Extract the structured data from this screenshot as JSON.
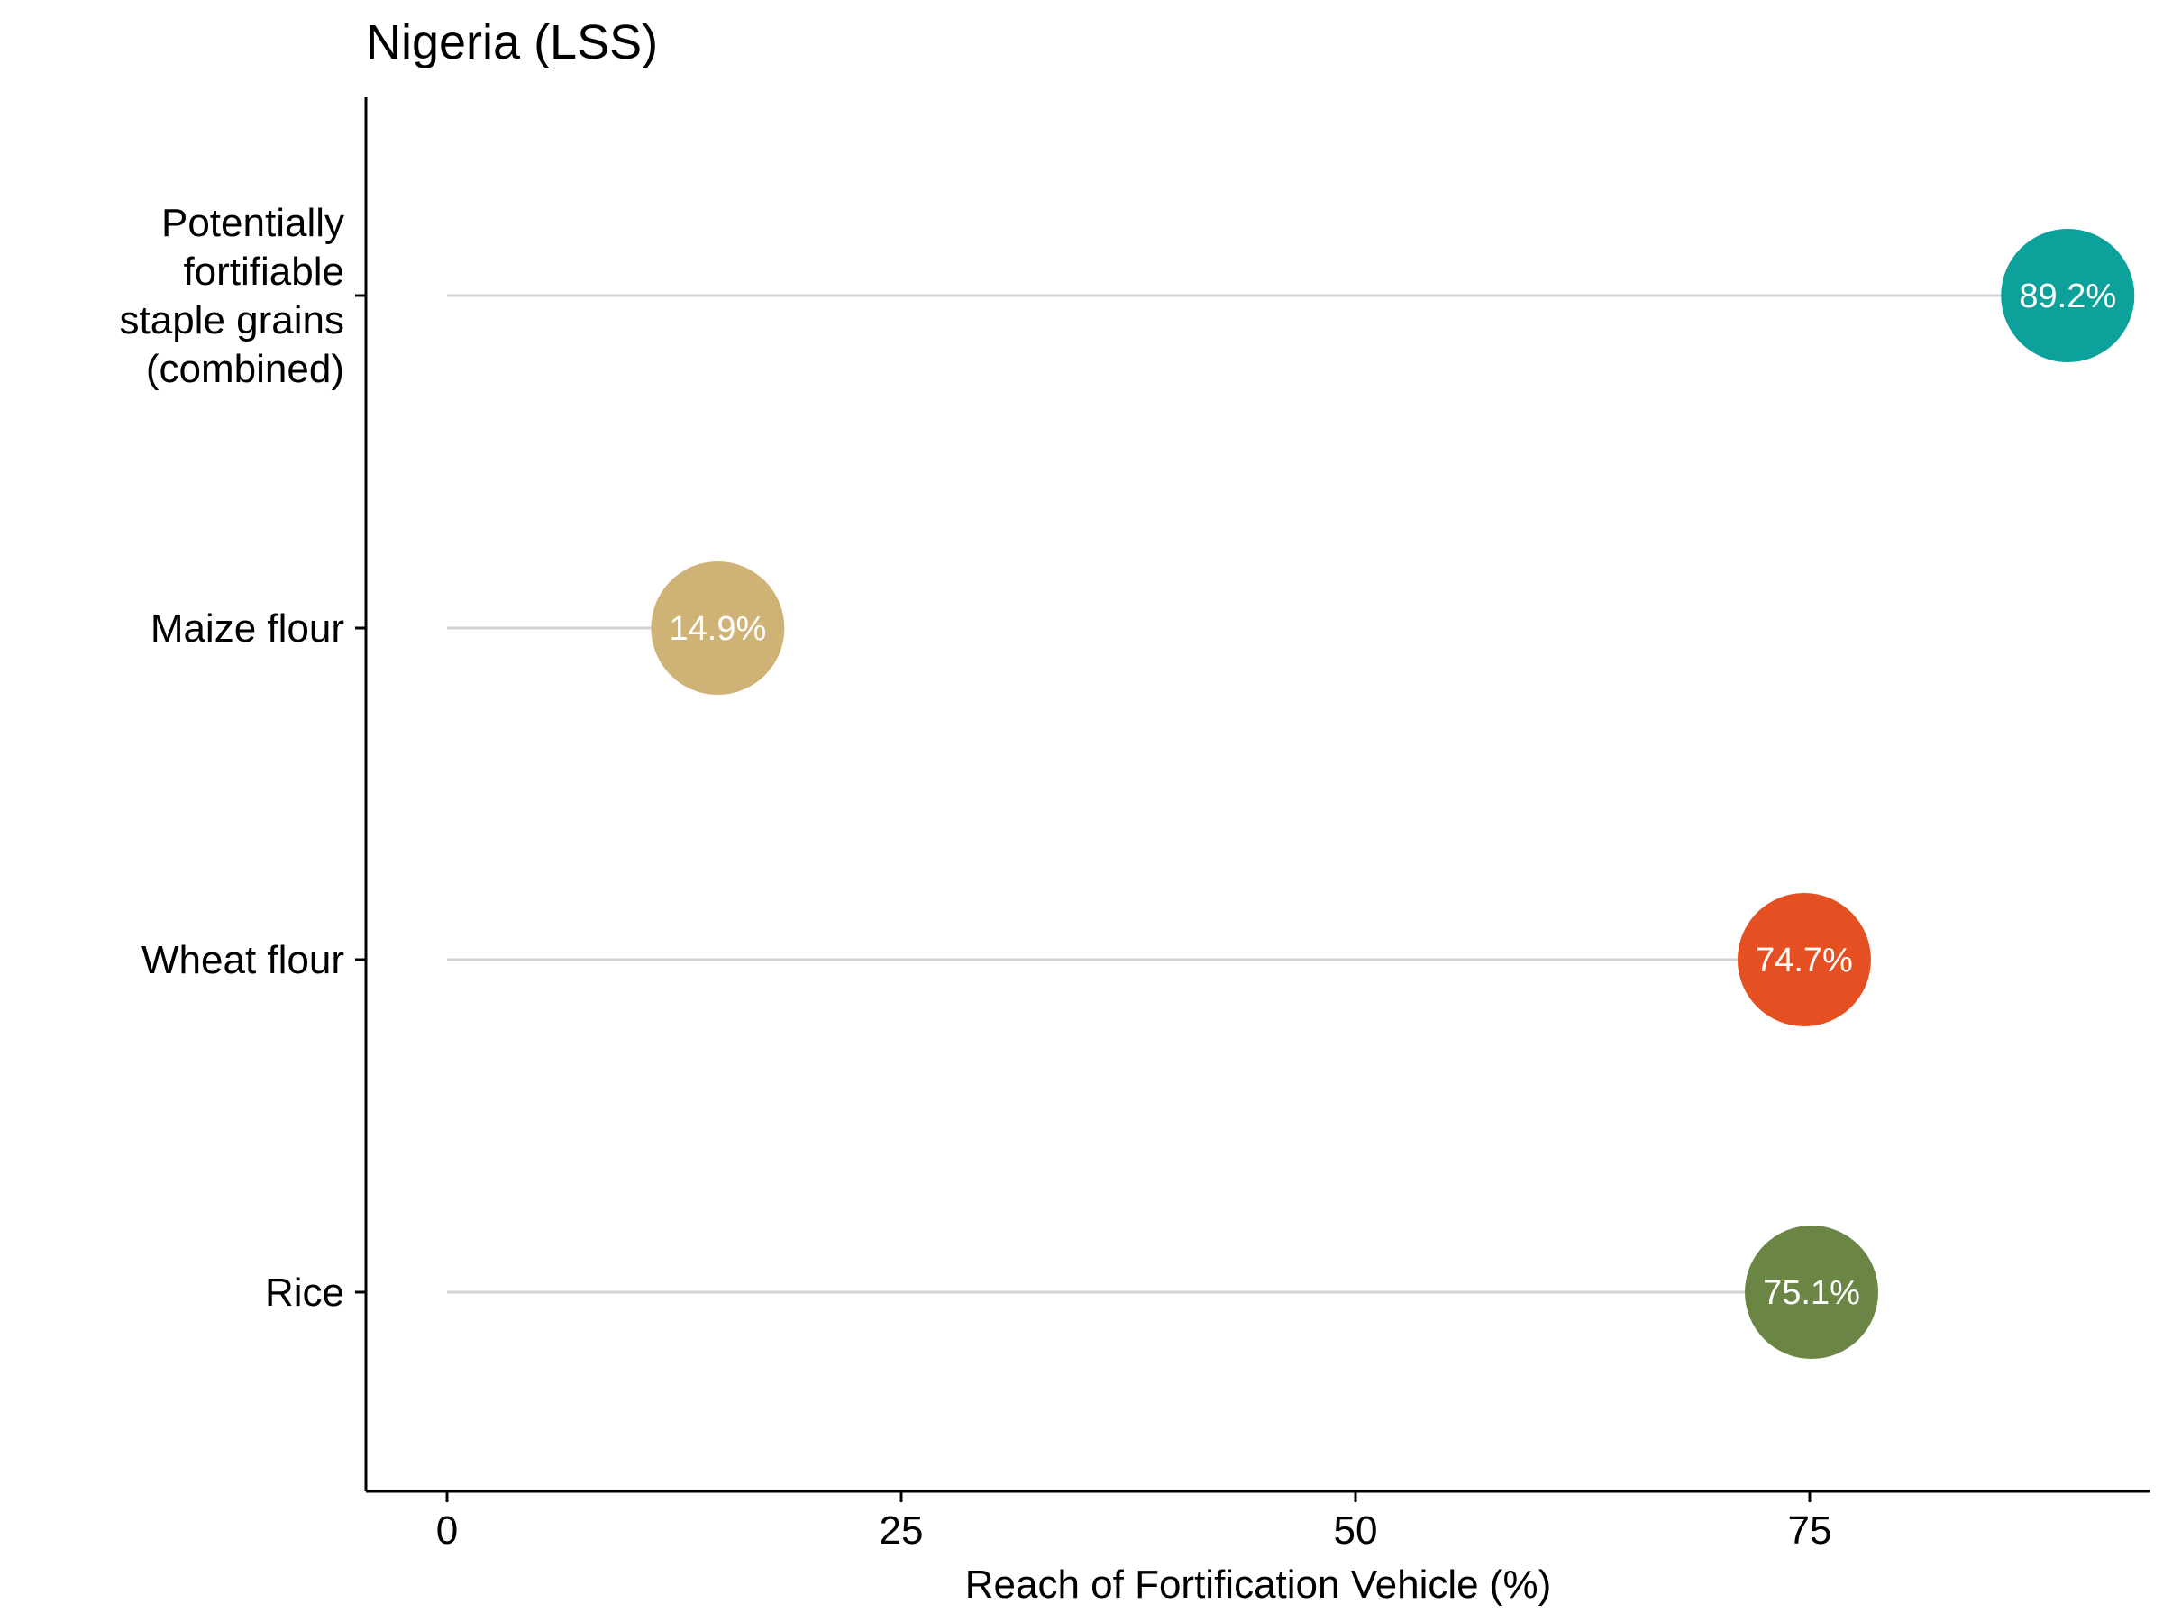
{
  "chart_data": {
    "type": "lollipop",
    "title": "Nigeria (LSS)",
    "xlabel": "Reach of Fortification Vehicle (%)",
    "ylabel": "",
    "xlim": [
      0,
      93
    ],
    "xticks": [
      0,
      25,
      50,
      75
    ],
    "grid": false,
    "legend": "none",
    "points": [
      {
        "label": [
          "Potentially",
          "fortifiable",
          "staple grains",
          "(combined)"
        ],
        "value": 89.2,
        "value_label": "89.2%",
        "color": "#0ca19a"
      },
      {
        "label": [
          "Maize flour"
        ],
        "value": 14.9,
        "value_label": "14.9%",
        "color": "#cfb275"
      },
      {
        "label": [
          "Wheat flour"
        ],
        "value": 74.7,
        "value_label": "74.7%",
        "color": "#e45022"
      },
      {
        "label": [
          "Rice"
        ],
        "value": 75.1,
        "value_label": "75.1%",
        "color": "#6a8544"
      }
    ],
    "stem_color": "#d3d3d3",
    "axis_color": "#000000"
  }
}
